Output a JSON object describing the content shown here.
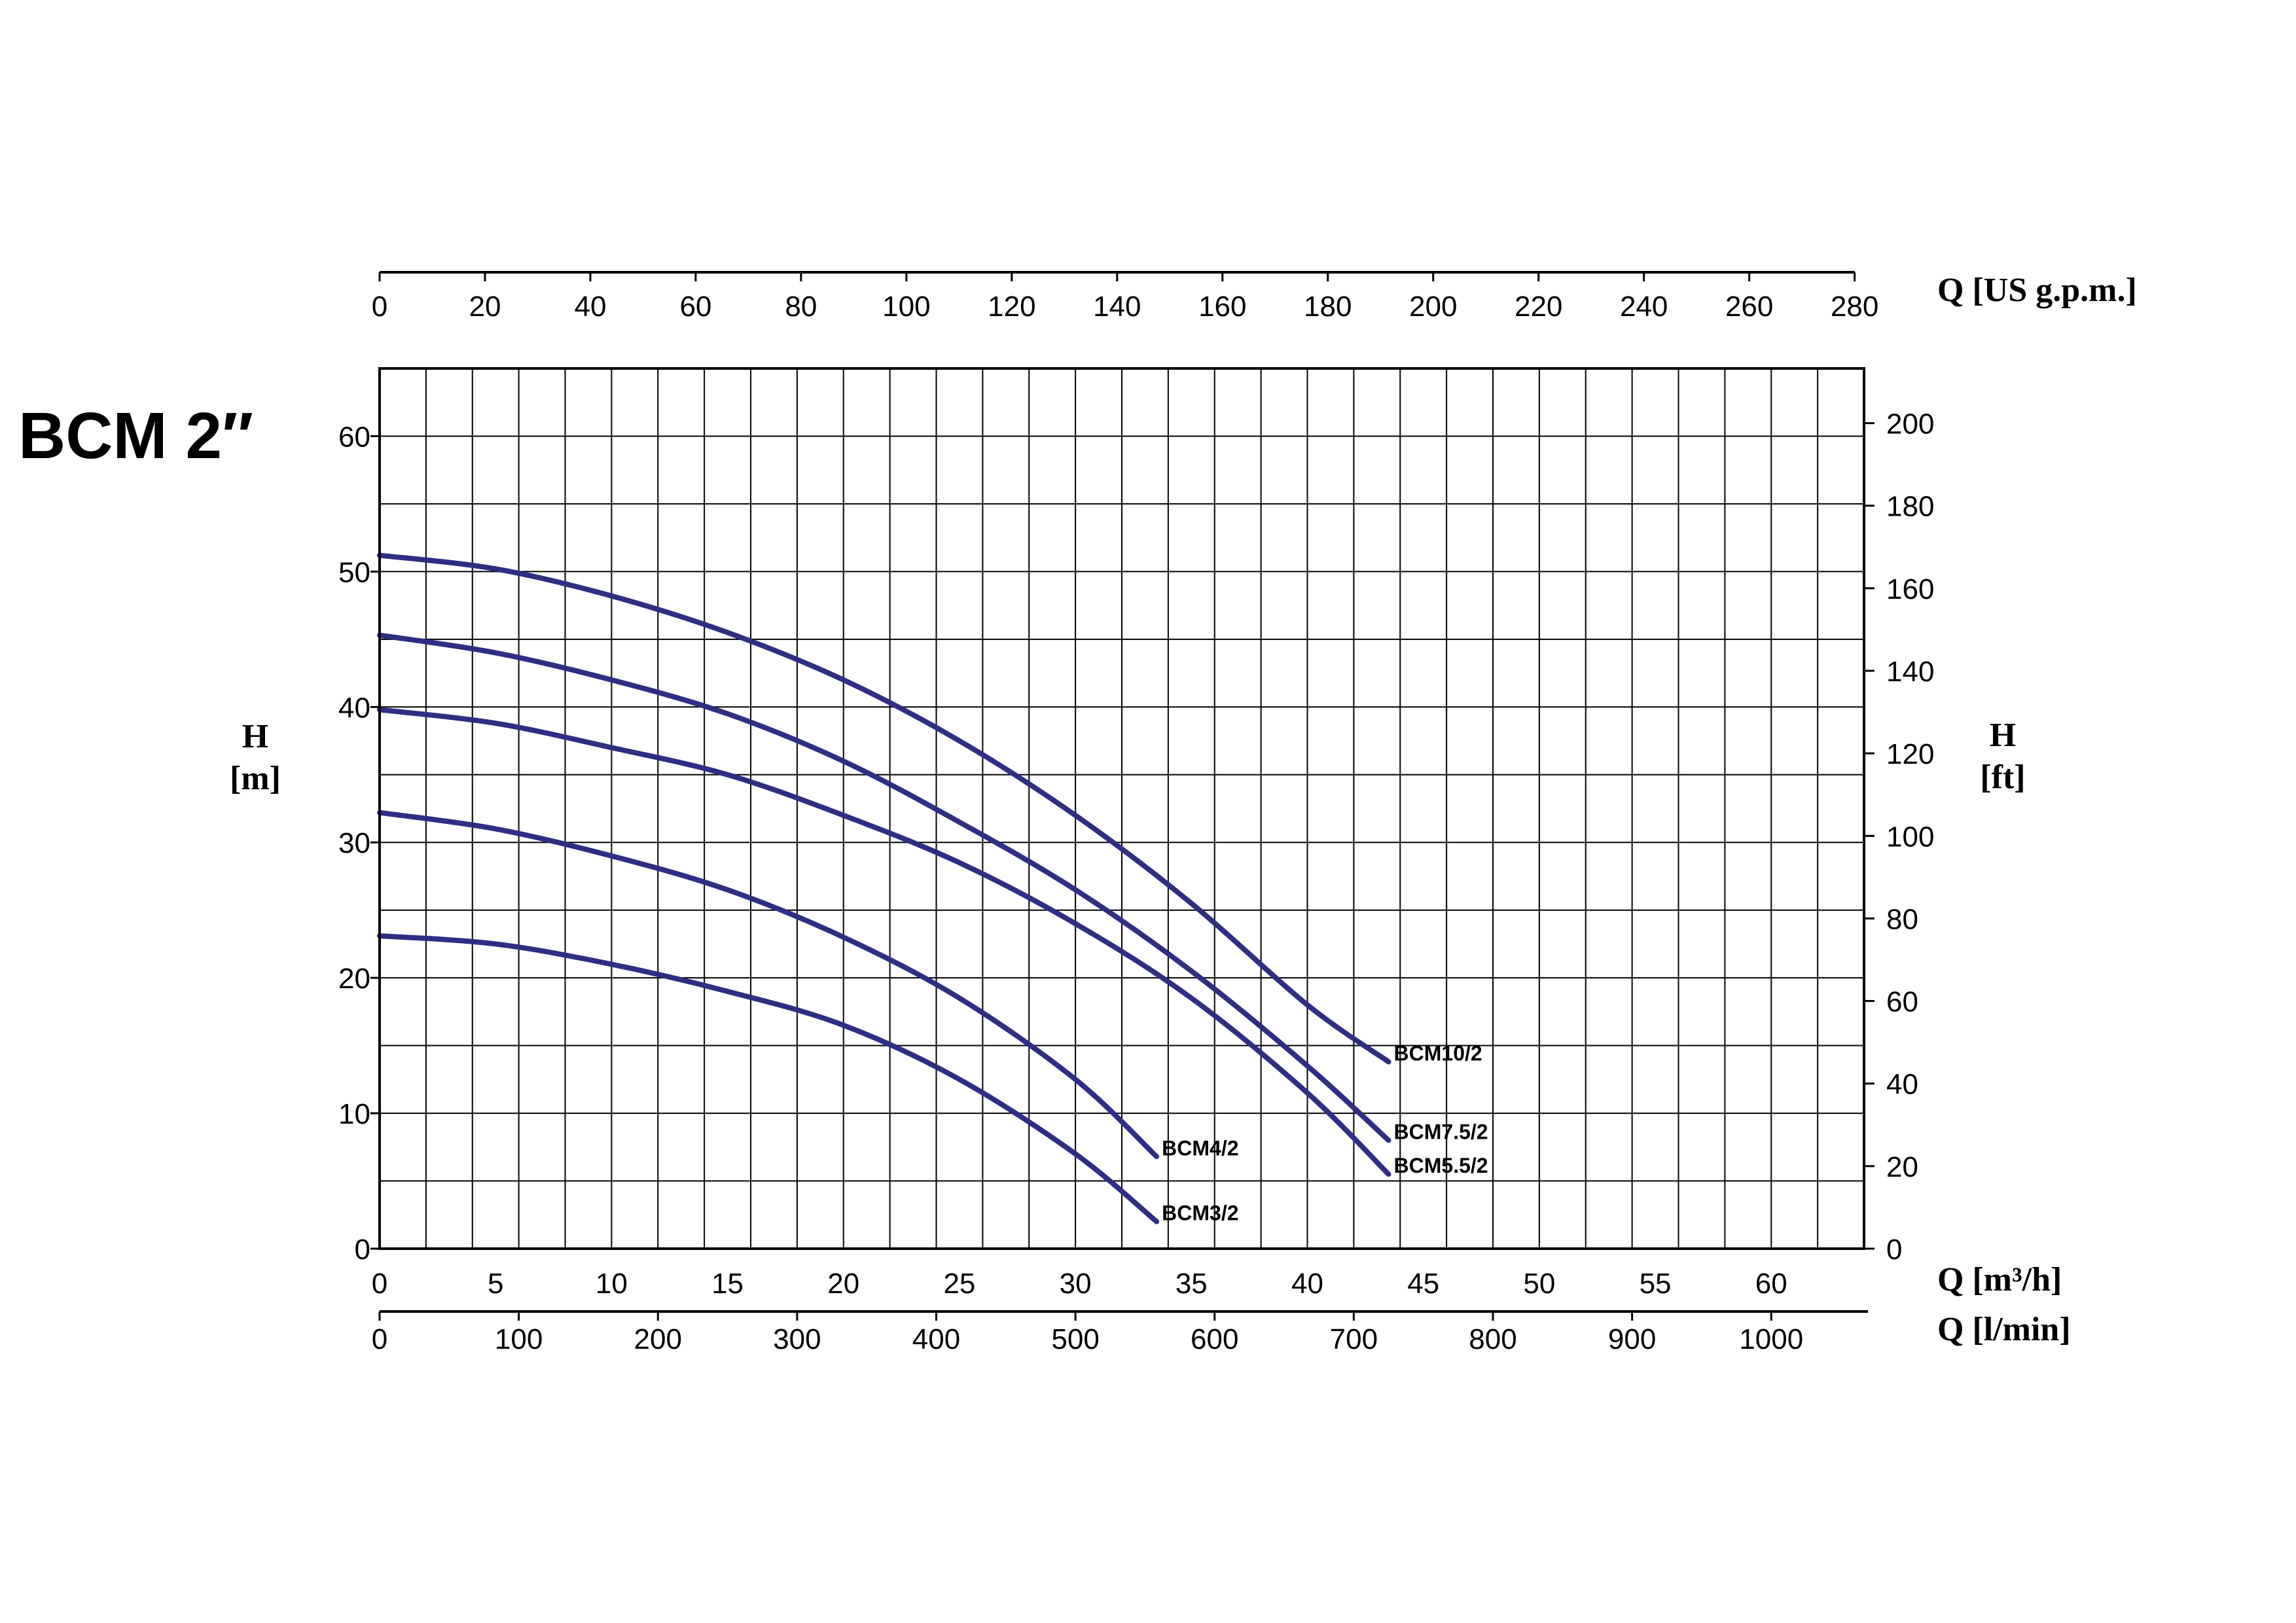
{
  "title": "BCM 2″",
  "chart_data": {
    "type": "line",
    "x_axis": {
      "label": "Q [m³/h]",
      "min": 0,
      "max": 64,
      "ticks": [
        0,
        5,
        10,
        15,
        20,
        25,
        30,
        35,
        40,
        45,
        50,
        55,
        60
      ],
      "minor_grid_step": 2
    },
    "y_axis": {
      "label": "H [m]",
      "label_line1": "H",
      "label_line2": "[m]",
      "min": 0,
      "max": 65,
      "ticks": [
        0,
        10,
        20,
        30,
        40,
        50,
        60
      ],
      "minor_grid_step": 5
    },
    "secondary_axes": {
      "top": {
        "label": "Q [US g.p.m.]",
        "unit_factor_from_m3h": 4.4029,
        "ticks": [
          0,
          20,
          40,
          60,
          80,
          100,
          120,
          140,
          160,
          180,
          200,
          220,
          240,
          260,
          280
        ]
      },
      "bottom": {
        "label": "Q [l/min]",
        "unit_factor_from_m3h": 16.6667,
        "ticks": [
          0,
          100,
          200,
          300,
          400,
          500,
          600,
          700,
          800,
          900,
          1000
        ]
      },
      "right": {
        "label": "H [ft]",
        "label_line1": "H",
        "label_line2": "[ft]",
        "unit_factor_from_m": 3.2808,
        "ticks": [
          0,
          20,
          40,
          60,
          80,
          100,
          120,
          140,
          160,
          180,
          200
        ]
      }
    },
    "grid": true,
    "line_color": "#2e2e82",
    "series": [
      {
        "name": "BCM10/2",
        "x": [
          0,
          5,
          10,
          15,
          20,
          25,
          30,
          35,
          40,
          43.5
        ],
        "y": [
          51.2,
          50.2,
          48.2,
          45.5,
          42,
          37.5,
          32,
          25.5,
          18,
          13.8
        ]
      },
      {
        "name": "BCM7.5/2",
        "x": [
          0,
          5,
          10,
          15,
          20,
          25,
          30,
          35,
          40,
          43.5
        ],
        "y": [
          45.3,
          44,
          42,
          39.5,
          36,
          31.5,
          26.5,
          20.5,
          13.5,
          8
        ]
      },
      {
        "name": "BCM5.5/2",
        "x": [
          0,
          5,
          10,
          15,
          20,
          25,
          30,
          35,
          40,
          43.5
        ],
        "y": [
          39.8,
          38.8,
          37,
          35,
          32,
          28.5,
          24,
          18.5,
          11.5,
          5.5
        ]
      },
      {
        "name": "BCM4/2",
        "x": [
          0,
          5,
          10,
          15,
          20,
          25,
          30,
          33.5
        ],
        "y": [
          32.2,
          31,
          29,
          26.5,
          23,
          18.5,
          12.5,
          6.8
        ]
      },
      {
        "name": "BCM3/2",
        "x": [
          0,
          5,
          10,
          15,
          20,
          25,
          30,
          33.5
        ],
        "y": [
          23.1,
          22.5,
          21,
          19,
          16.5,
          12.5,
          7,
          2
        ]
      }
    ]
  }
}
